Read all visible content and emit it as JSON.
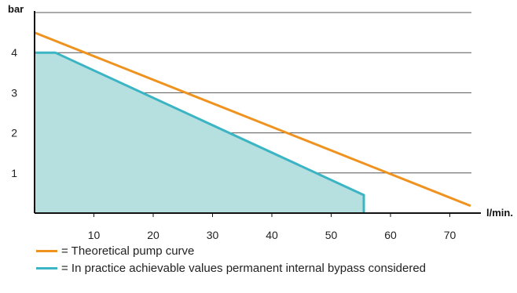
{
  "chart_data": {
    "type": "line",
    "title": "",
    "xlabel": "l/min.",
    "ylabel": "bar",
    "xlim": [
      0,
      75
    ],
    "ylim": [
      0,
      5
    ],
    "xticks": [
      10,
      20,
      30,
      40,
      50,
      60,
      70
    ],
    "yticks": [
      1,
      2,
      3,
      4
    ],
    "grid": "horizontal",
    "legend_position": "bottom",
    "series": [
      {
        "name": "= Theoretical pump curve",
        "color": "#f0921e",
        "x": [
          0,
          73.5
        ],
        "y": [
          4.5,
          0.18
        ]
      },
      {
        "name": "= In practice achievable values permanent internal bypass considered",
        "color": "#3bb5c4",
        "fill": "#b6dfe0",
        "x": [
          0,
          3.5,
          55.5
        ],
        "y": [
          4.0,
          4.0,
          0.45
        ]
      }
    ]
  }
}
